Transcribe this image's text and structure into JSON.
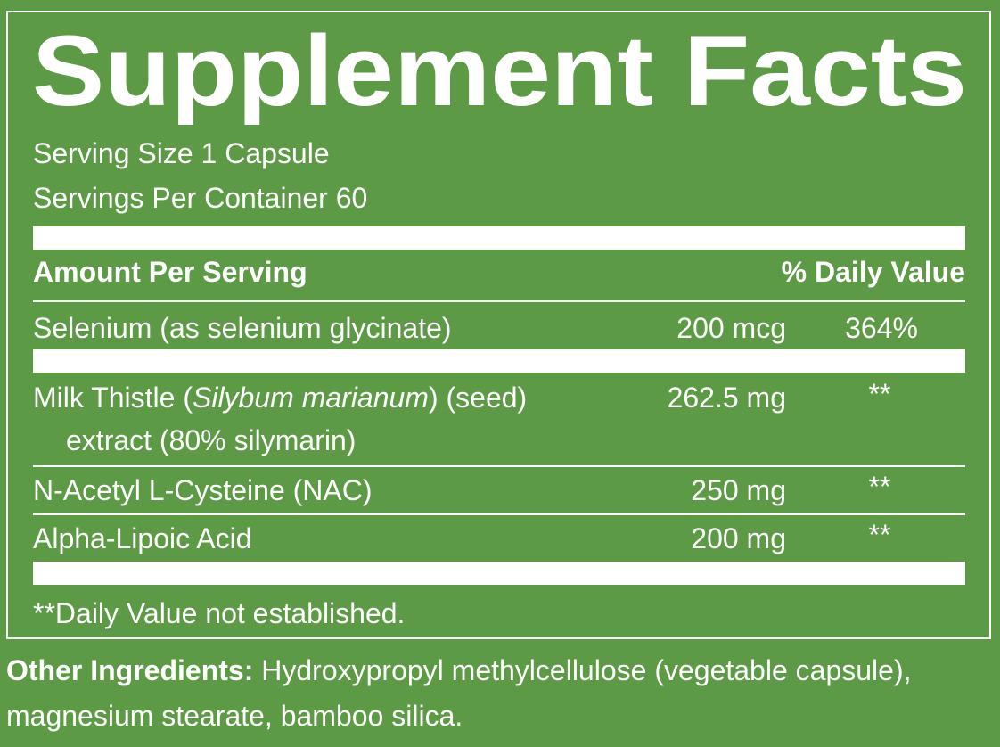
{
  "title": "Supplement Facts",
  "serving": [
    "Serving Size 1 Capsule",
    "Servings Per Container 60"
  ],
  "header": {
    "amount": "Amount Per Serving",
    "daily_value": "% Daily Value"
  },
  "rows": [
    {
      "name": [
        "Selenium (as selenium glycinate)"
      ],
      "amount": "200 mcg",
      "daily_value": "364%"
    },
    {
      "name": [
        "Milk Thistle (",
        "Silybum marianum",
        ") (seed)",
        "extract (80% silymarin)"
      ],
      "amount": "262.5 mg",
      "daily_value": "**"
    },
    {
      "name": [
        "N-Acetyl L-Cysteine (NAC)"
      ],
      "amount": "250 mg",
      "daily_value": "**"
    },
    {
      "name": [
        "Alpha-Lipoic Acid"
      ],
      "amount": "200 mg",
      "daily_value": "**"
    }
  ],
  "footnote": "**Daily Value not established.",
  "other_ingredients": {
    "label": "Other Ingredients:",
    "text": [
      "Hydroxypropyl methylcellulose (vegetable capsule),",
      "magnesium stearate, bamboo silica."
    ]
  }
}
